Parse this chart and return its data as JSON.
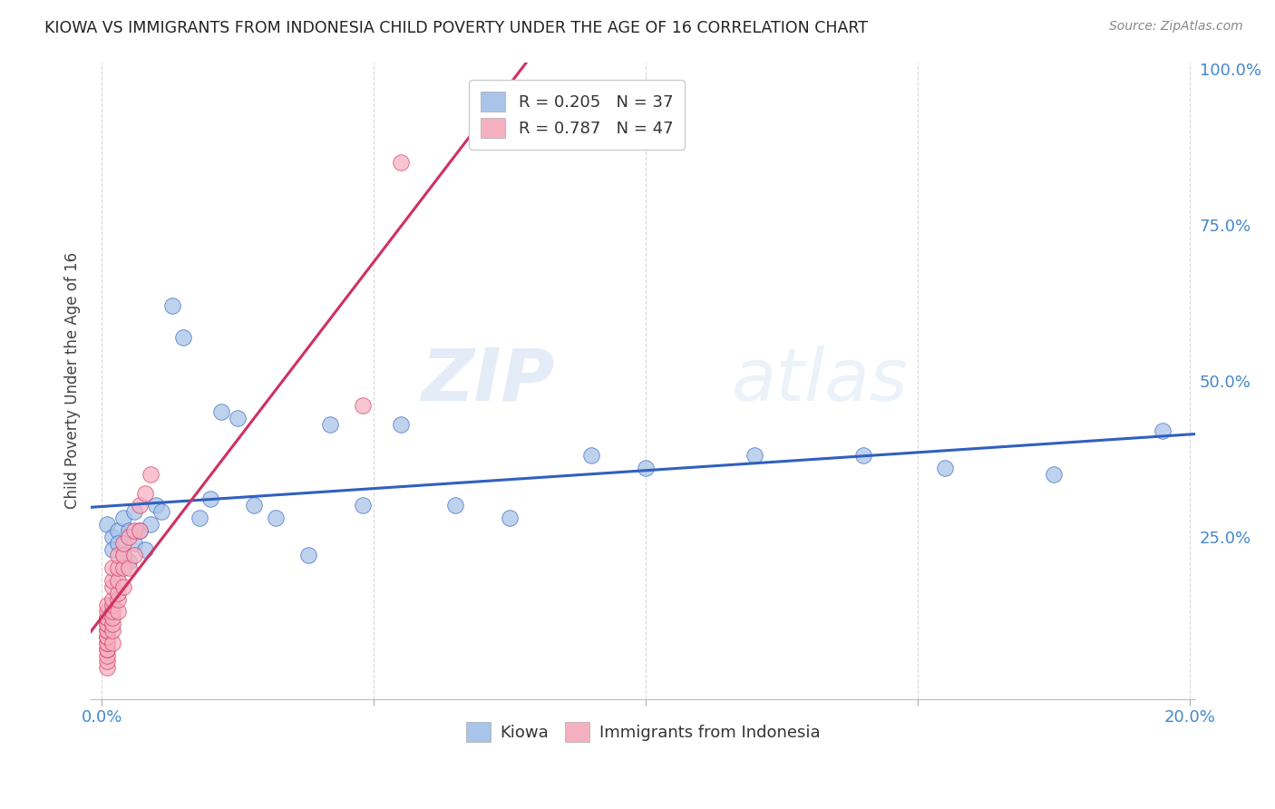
{
  "title": "KIOWA VS IMMIGRANTS FROM INDONESIA CHILD POVERTY UNDER THE AGE OF 16 CORRELATION CHART",
  "source": "Source: ZipAtlas.com",
  "ylabel": "Child Poverty Under the Age of 16",
  "xlim": [
    -0.002,
    0.201
  ],
  "ylim": [
    -0.01,
    1.01
  ],
  "kiowa_R": 0.205,
  "kiowa_N": 37,
  "indonesia_R": 0.787,
  "indonesia_N": 47,
  "kiowa_color": "#a8c4e8",
  "indonesia_color": "#f5b0c0",
  "kiowa_line_color": "#3060c0",
  "indonesia_line_color": "#d03060",
  "watermark_zip": "ZIP",
  "watermark_atlas": "atlas",
  "background_color": "#ffffff",
  "grid_color": "#d0d0d0",
  "kiowa_x": [
    0.001,
    0.002,
    0.002,
    0.003,
    0.003,
    0.004,
    0.004,
    0.005,
    0.005,
    0.006,
    0.006,
    0.007,
    0.008,
    0.009,
    0.01,
    0.011,
    0.013,
    0.015,
    0.018,
    0.02,
    0.022,
    0.025,
    0.028,
    0.032,
    0.038,
    0.042,
    0.048,
    0.055,
    0.065,
    0.075,
    0.09,
    0.1,
    0.12,
    0.14,
    0.155,
    0.175,
    0.195
  ],
  "kiowa_y": [
    0.27,
    0.25,
    0.23,
    0.26,
    0.24,
    0.22,
    0.28,
    0.21,
    0.26,
    0.24,
    0.29,
    0.26,
    0.23,
    0.27,
    0.3,
    0.29,
    0.62,
    0.57,
    0.28,
    0.31,
    0.45,
    0.44,
    0.3,
    0.28,
    0.22,
    0.43,
    0.3,
    0.43,
    0.3,
    0.28,
    0.38,
    0.36,
    0.38,
    0.38,
    0.36,
    0.35,
    0.42
  ],
  "indonesia_x": [
    0.001,
    0.001,
    0.001,
    0.001,
    0.001,
    0.001,
    0.001,
    0.001,
    0.001,
    0.001,
    0.001,
    0.001,
    0.001,
    0.001,
    0.001,
    0.001,
    0.001,
    0.002,
    0.002,
    0.002,
    0.002,
    0.002,
    0.002,
    0.002,
    0.002,
    0.002,
    0.002,
    0.003,
    0.003,
    0.003,
    0.003,
    0.003,
    0.003,
    0.004,
    0.004,
    0.004,
    0.004,
    0.005,
    0.005,
    0.006,
    0.006,
    0.007,
    0.007,
    0.008,
    0.009,
    0.048,
    0.055
  ],
  "indonesia_y": [
    0.04,
    0.05,
    0.06,
    0.07,
    0.07,
    0.08,
    0.08,
    0.09,
    0.09,
    0.1,
    0.1,
    0.11,
    0.11,
    0.12,
    0.12,
    0.13,
    0.14,
    0.08,
    0.1,
    0.11,
    0.12,
    0.13,
    0.14,
    0.15,
    0.17,
    0.18,
    0.2,
    0.13,
    0.15,
    0.16,
    0.18,
    0.2,
    0.22,
    0.17,
    0.2,
    0.22,
    0.24,
    0.2,
    0.25,
    0.22,
    0.26,
    0.26,
    0.3,
    0.32,
    0.35,
    0.46,
    0.85
  ],
  "legend_R_blue": "R = 0.205",
  "legend_N_blue": "N = 37",
  "legend_R_pink": "R = 0.787",
  "legend_N_pink": "N = 47"
}
